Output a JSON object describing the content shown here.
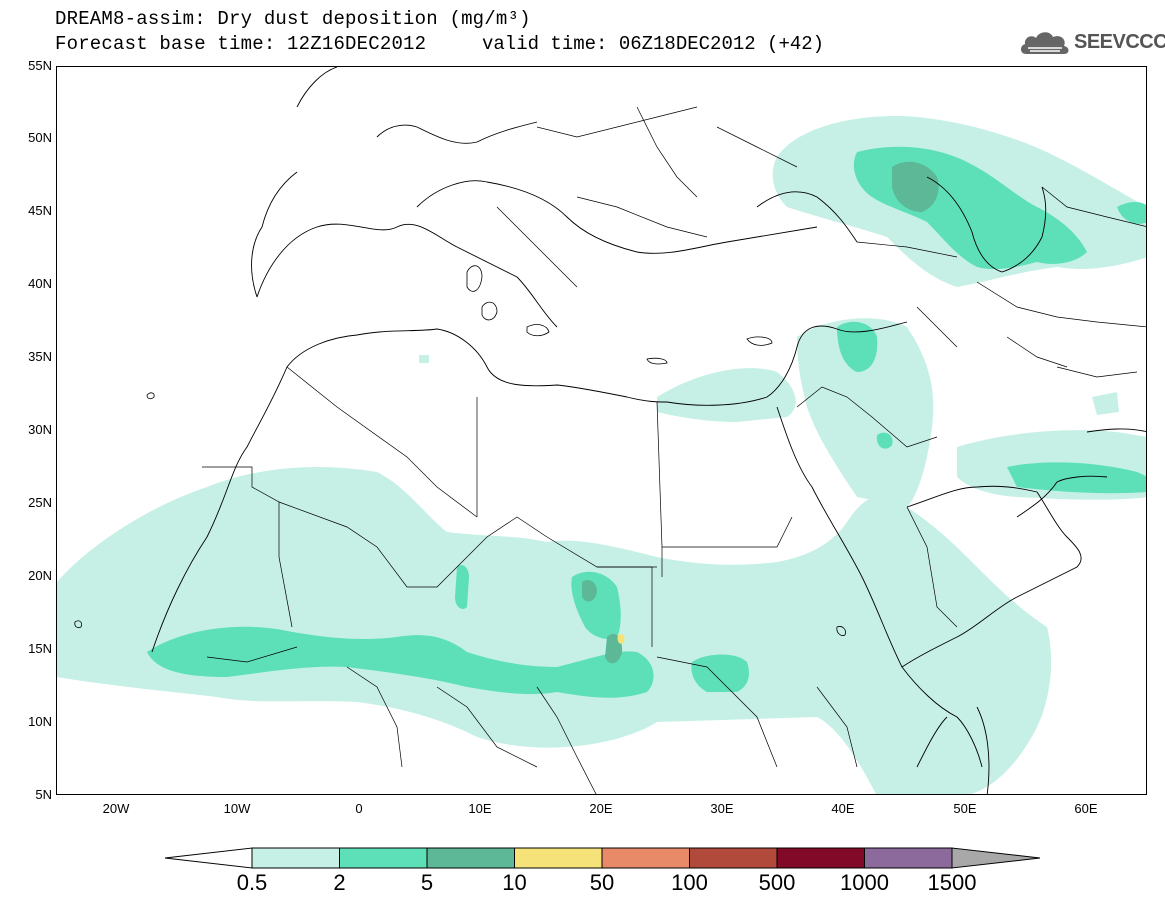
{
  "header": {
    "title_line1": "DREAM8-assim: Dry dust deposition (mg/m³)",
    "title_line2": "Forecast base time: 12Z16DEC2012",
    "valid_time": "valid time: 06Z18DEC2012 (+42)"
  },
  "logo": {
    "text": "SEEVCCC",
    "icon": "cloud-logo-icon"
  },
  "map": {
    "lat_range": [
      5,
      55
    ],
    "lon_range": [
      -25,
      65
    ],
    "lat_labels": [
      "55N",
      "50N",
      "45N",
      "40N",
      "35N",
      "30N",
      "25N",
      "20N",
      "15N",
      "10N",
      "5N"
    ],
    "lon_labels": [
      "20W",
      "10W",
      "0",
      "10E",
      "20E",
      "30E",
      "40E",
      "50E",
      "60E"
    ]
  },
  "colorbar": {
    "levels": [
      "0.5",
      "2",
      "5",
      "10",
      "50",
      "100",
      "500",
      "1000",
      "1500"
    ],
    "colors": [
      "#c6f0e6",
      "#5de0b8",
      "#5cb896",
      "#f5e37a",
      "#e88a68",
      "#b24a3c",
      "#820a28",
      "#8c6a9c",
      "#a8a8a8"
    ],
    "under_color": "#ffffff"
  }
}
